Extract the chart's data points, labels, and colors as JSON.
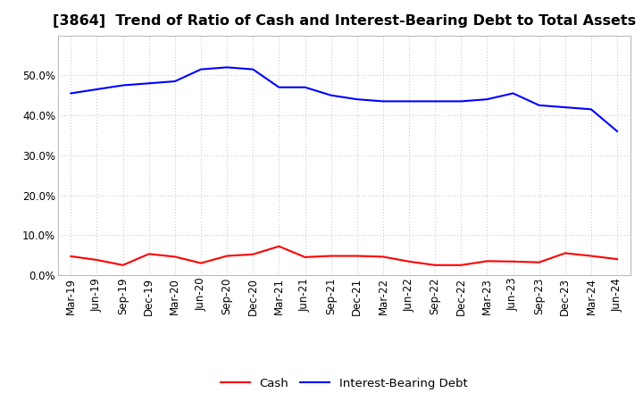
{
  "title": "[3864]  Trend of Ratio of Cash and Interest-Bearing Debt to Total Assets",
  "labels": [
    "Mar-19",
    "Jun-19",
    "Sep-19",
    "Dec-19",
    "Mar-20",
    "Jun-20",
    "Sep-20",
    "Dec-20",
    "Mar-21",
    "Jun-21",
    "Sep-21",
    "Dec-21",
    "Mar-22",
    "Jun-22",
    "Sep-22",
    "Dec-22",
    "Mar-23",
    "Jun-23",
    "Sep-23",
    "Dec-23",
    "Mar-24",
    "Jun-24"
  ],
  "cash": [
    4.7,
    3.8,
    2.5,
    5.3,
    4.6,
    3.0,
    4.8,
    5.2,
    7.2,
    4.5,
    4.8,
    4.8,
    4.6,
    3.4,
    2.5,
    2.5,
    3.5,
    3.4,
    3.2,
    5.5,
    4.8,
    4.0
  ],
  "interest_bearing_debt": [
    45.5,
    46.5,
    47.5,
    48.0,
    48.5,
    51.5,
    52.0,
    51.5,
    47.0,
    47.0,
    45.0,
    44.0,
    43.5,
    43.5,
    43.5,
    43.5,
    44.0,
    45.5,
    42.5,
    42.0,
    41.5,
    36.0
  ],
  "cash_color": "#ff0000",
  "debt_color": "#0000ff",
  "background_color": "#ffffff",
  "plot_bg_color": "#ffffff",
  "grid_color": "#aaaaaa",
  "ylim": [
    0,
    60
  ],
  "yticks": [
    0,
    10,
    20,
    30,
    40,
    50
  ],
  "legend_cash": "Cash",
  "legend_debt": "Interest-Bearing Debt",
  "title_fontsize": 11.5,
  "axis_fontsize": 8.5,
  "legend_fontsize": 9.5
}
